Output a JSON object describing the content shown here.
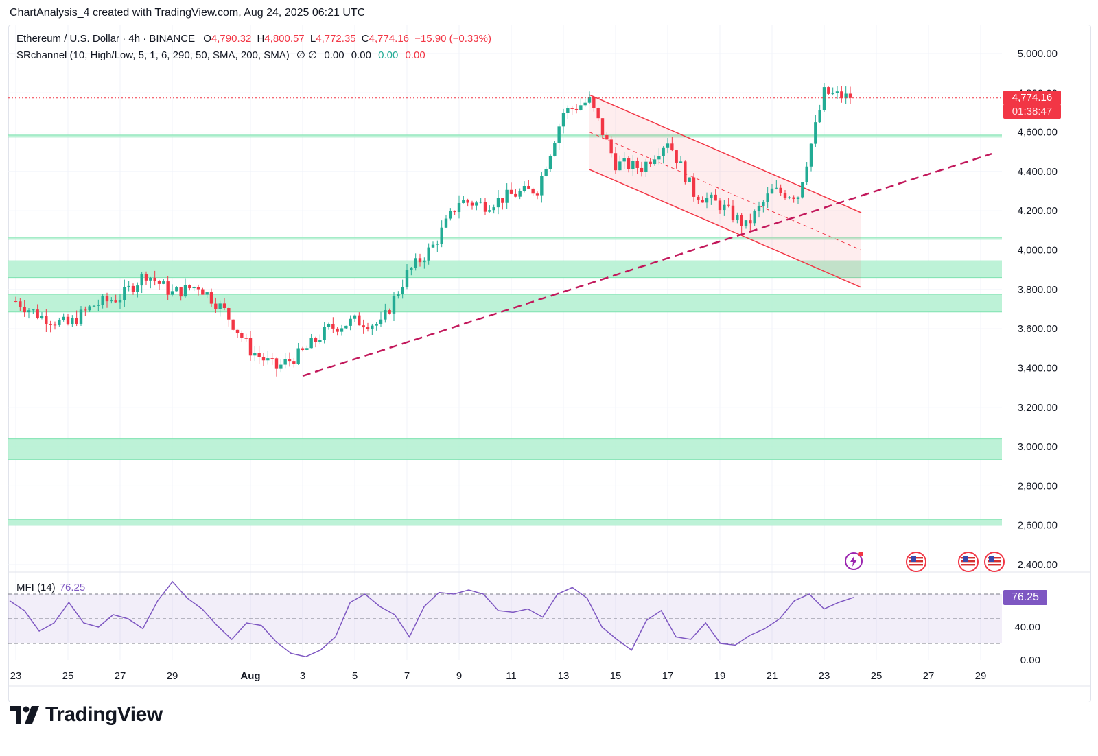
{
  "caption": "ChartAnalysis_4 created with TradingView.com, Aug 24, 2025 06:21 UTC",
  "legend": {
    "symbol": "Ethereum / U.S. Dollar · 4h · BINANCE",
    "o_label": "O",
    "o": "4,790.32",
    "h_label": "H",
    "h": "4,800.57",
    "l_label": "L",
    "l": "4,772.35",
    "c_label": "C",
    "c": "4,774.16",
    "change": "−15.90 (−0.33%)"
  },
  "indicator": {
    "label": "SRchannel (10, High/Low, 5, 1, 6, 290, 50, SMA, 200, SMA)",
    "flags": "∅ ∅",
    "v1": "0.00",
    "v2": "0.00",
    "v3": "0.00",
    "v4": "0.00"
  },
  "price_tag": {
    "price": "4,774.16",
    "countdown": "01:38:47"
  },
  "mfi": {
    "label": "MFI (14)",
    "value": "76.25",
    "tag": "76.25"
  },
  "brand": "TradingView",
  "colors": {
    "up": "#22ab94",
    "down": "#f23645",
    "zone": "#b2f0d0",
    "zone_line": "#7ee2b0",
    "channel": "#f23645",
    "trend": "#c2185b",
    "mfi": "#7e57c2"
  },
  "chart_data": [
    {
      "type": "candlestick",
      "title": "Ethereum / U.S. Dollar · 4h · BINANCE",
      "x_ticks": [
        "23",
        "25",
        "27",
        "29",
        "Aug",
        "3",
        "5",
        "7",
        "9",
        "11",
        "13",
        "15",
        "17",
        "19",
        "21",
        "23",
        "25",
        "27",
        "29"
      ],
      "y_ticks": [
        "5,000.00",
        "4,800.00",
        "4,600.00",
        "4,400.00",
        "4,200.00",
        "4,000.00",
        "3,800.00",
        "3,600.00",
        "3,400.00",
        "3,200.00",
        "3,000.00",
        "2,800.00",
        "2,600.00",
        "2,400.00"
      ],
      "ylim": [
        2380,
        5100
      ],
      "x_range": [
        "Jul 23",
        "Aug 30"
      ],
      "support_resistance_zones": [
        {
          "low": 4575,
          "high": 4585
        },
        {
          "low": 4055,
          "high": 4065
        },
        {
          "low": 3860,
          "high": 3945
        },
        {
          "low": 3685,
          "high": 3775
        },
        {
          "low": 2935,
          "high": 3040
        },
        {
          "low": 2600,
          "high": 2630
        }
      ],
      "close_path": [
        [
          "Jul 23",
          3740
        ],
        [
          "Jul 24",
          3660
        ],
        [
          "Jul 25",
          3620
        ],
        [
          "Jul 26",
          3720
        ],
        [
          "Jul 27",
          3760
        ],
        [
          "Jul 28",
          3880
        ],
        [
          "Jul 29",
          3780
        ],
        [
          "Jul 30",
          3820
        ],
        [
          "Jul 31",
          3690
        ],
        [
          "Aug 1",
          3490
        ],
        [
          "Aug 2",
          3400
        ],
        [
          "Aug 3",
          3480
        ],
        [
          "Aug 4",
          3600
        ],
        [
          "Aug 5",
          3640
        ],
        [
          "Aug 6",
          3620
        ],
        [
          "Aug 7",
          3880
        ],
        [
          "Aug 8",
          4020
        ],
        [
          "Aug 9",
          4250
        ],
        [
          "Aug 10",
          4230
        ],
        [
          "Aug 11",
          4280
        ],
        [
          "Aug 12",
          4310
        ],
        [
          "Aug 13",
          4700
        ],
        [
          "Aug 14",
          4760
        ],
        [
          "Aug 15",
          4440
        ],
        [
          "Aug 16",
          4420
        ],
        [
          "Aug 17",
          4560
        ],
        [
          "Aug 18",
          4290
        ],
        [
          "Aug 19",
          4230
        ],
        [
          "Aug 20",
          4120
        ],
        [
          "Aug 21",
          4300
        ],
        [
          "Aug 22",
          4280
        ],
        [
          "Aug 23",
          4800
        ],
        [
          "Aug 24",
          4774
        ]
      ],
      "descending_channel": {
        "start": "Aug 14",
        "end": "Aug 24",
        "upper": [
          4790,
          4190
        ],
        "lower": [
          4410,
          3810
        ],
        "mid": [
          4600,
          4000
        ]
      },
      "rising_trendline": {
        "start": [
          "Aug 3",
          3360
        ],
        "end": [
          "Aug 29",
          4490
        ]
      },
      "last_price": 4774.16
    },
    {
      "type": "line",
      "title": "MFI (14)",
      "y_ticks": [
        "76.25",
        "40.00",
        "0.00"
      ],
      "ylim": [
        0,
        100
      ],
      "bands": [
        80,
        50,
        20
      ],
      "values": [
        72,
        60,
        35,
        45,
        70,
        45,
        40,
        55,
        50,
        38,
        72,
        95,
        75,
        62,
        42,
        25,
        45,
        42,
        22,
        8,
        4,
        12,
        28,
        70,
        80,
        65,
        55,
        28,
        65,
        82,
        80,
        85,
        80,
        60,
        58,
        62,
        52,
        80,
        88,
        75,
        40,
        25,
        12,
        48,
        60,
        28,
        25,
        45,
        20,
        18,
        30,
        38,
        50,
        72,
        80,
        62,
        70,
        76
      ]
    }
  ]
}
